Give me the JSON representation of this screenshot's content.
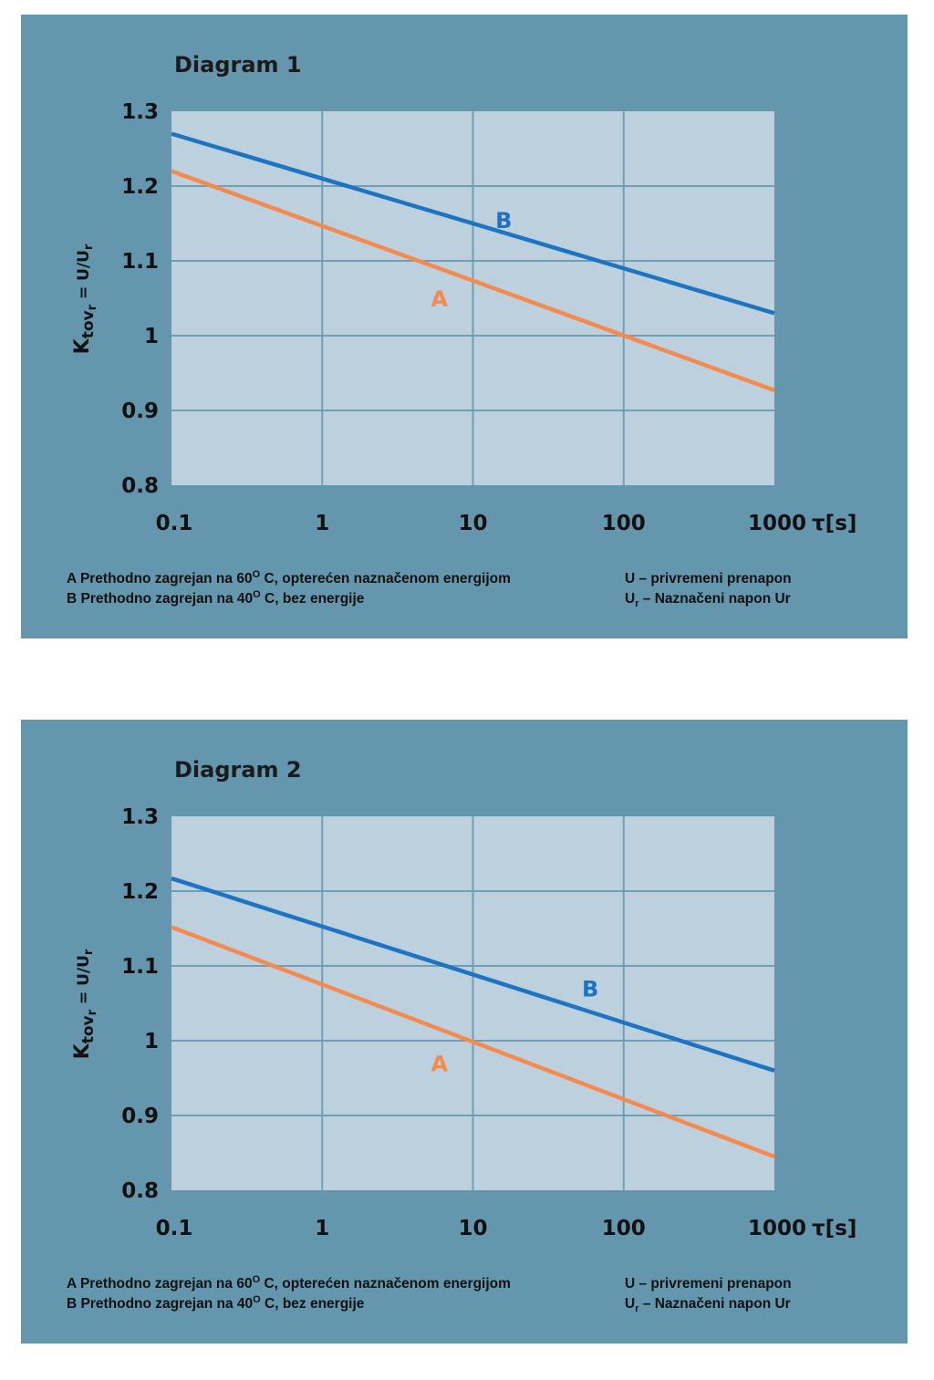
{
  "chart_data": [
    {
      "type": "line",
      "title": "Diagram 1",
      "xlabel": "τ[s]",
      "ylabel": {
        "main": "K",
        "sub": "tov",
        "subsub": "r",
        "rest": " = U/U",
        "rest_sub": "r"
      },
      "x_scale": "log",
      "x_ticks": [
        0.1,
        1,
        10,
        100,
        1000
      ],
      "x_tick_labels": [
        "0.1",
        "1",
        "10",
        "100",
        "1000"
      ],
      "ylim": [
        0.8,
        1.3
      ],
      "y_ticks": [
        0.8,
        0.9,
        1,
        1.1,
        1.2,
        1.3
      ],
      "y_tick_labels": [
        "0.8",
        "0.9",
        "1",
        "1.1",
        "1.2",
        "1.3"
      ],
      "grid": true,
      "series": [
        {
          "name": "A",
          "color": "#f58a4e",
          "x": [
            0.1,
            1000
          ],
          "values": [
            1.22,
            0.927
          ],
          "label_at": [
            6,
            1.05
          ]
        },
        {
          "name": "B",
          "color": "#1d74c2",
          "x": [
            0.1,
            1000
          ],
          "values": [
            1.27,
            1.03
          ],
          "label_at": [
            16,
            1.155
          ]
        }
      ],
      "legend": {
        "A": {
          "key": "A",
          "text_pre": "Prethodno zagrejan na 60",
          "sup": "O",
          "text_post": " C, opterećen naznačenom energijom"
        },
        "B": {
          "key": "B",
          "text_pre": "Prethodno zagrejan na 40",
          "sup": "O",
          "text_post": " C, bez energije"
        },
        "U": {
          "key": "U",
          "text": " – privremeni prenapon"
        },
        "Ur": {
          "key": "U",
          "key_sub": "r",
          "text": " – Naznačeni napon Ur"
        }
      }
    },
    {
      "type": "line",
      "title": "Diagram 2",
      "xlabel": "τ[s]",
      "ylabel": {
        "main": "K",
        "sub": "tov",
        "subsub": "r",
        "rest": " = U/U",
        "rest_sub": "r"
      },
      "x_scale": "log",
      "x_ticks": [
        0.1,
        1,
        10,
        100,
        1000
      ],
      "x_tick_labels": [
        "0.1",
        "1",
        "10",
        "100",
        "1000"
      ],
      "ylim": [
        0.8,
        1.3
      ],
      "y_ticks": [
        0.8,
        0.9,
        1,
        1.1,
        1.2,
        1.3
      ],
      "y_tick_labels": [
        "0.8",
        "0.9",
        "1",
        "1.1",
        "1.2",
        "1.3"
      ],
      "grid": true,
      "series": [
        {
          "name": "A",
          "color": "#f58a4e",
          "x": [
            0.1,
            1000
          ],
          "values": [
            1.152,
            0.845
          ],
          "label_at": [
            6,
            0.97
          ]
        },
        {
          "name": "B",
          "color": "#1d74c2",
          "x": [
            0.1,
            1000
          ],
          "values": [
            1.217,
            0.96
          ],
          "label_at": [
            60,
            1.07
          ]
        }
      ],
      "legend": {
        "A": {
          "key": "A",
          "text_pre": "Prethodno zagrejan na 60",
          "sup": "O",
          "text_post": " C, opterećen naznačenom energijom"
        },
        "B": {
          "key": "B",
          "text_pre": "Prethodno zagrejan na 40",
          "sup": "O",
          "text_post": " C, bez energije"
        },
        "U": {
          "key": "U",
          "text": " – privremeni prenapon"
        },
        "Ur": {
          "key": "U",
          "key_sub": "r",
          "text": " – Naznačeni napon Ur"
        }
      }
    }
  ]
}
